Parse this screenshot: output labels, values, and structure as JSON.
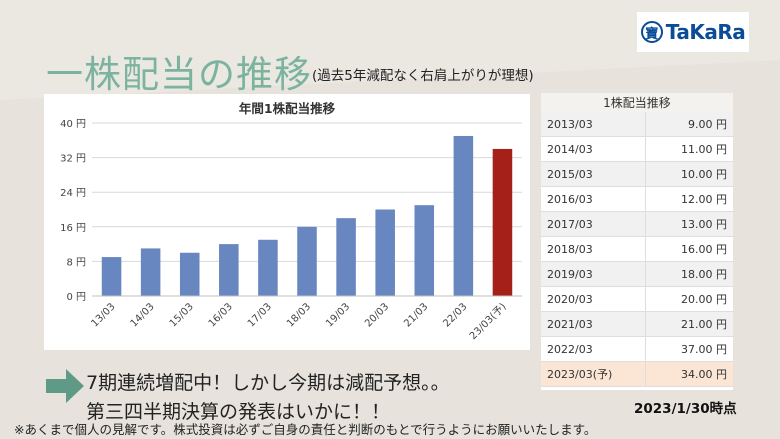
{
  "logo": {
    "mark": "寶",
    "text": "TaKaRa"
  },
  "title": {
    "main": "一株配当の推移",
    "sub": "(過去5年減配なく右肩上がりが理想)"
  },
  "chart_data": {
    "type": "bar",
    "title": "年間1株配当推移",
    "categories": [
      "13/03",
      "14/03",
      "15/03",
      "16/03",
      "17/03",
      "18/03",
      "19/03",
      "20/03",
      "21/03",
      "22/03",
      "23/03(予)"
    ],
    "values": [
      9,
      11,
      10,
      12,
      13,
      16,
      18,
      20,
      21,
      37,
      34
    ],
    "forecast_index": 10,
    "ylim": [
      0,
      40
    ],
    "yticks": [
      0,
      8,
      16,
      24,
      32,
      40
    ],
    "ytick_labels": [
      "0 円",
      "8 円",
      "16 円",
      "24 円",
      "32 円",
      "40 円"
    ],
    "grid": true,
    "colors": {
      "actual": "#6887c0",
      "forecast": "#a42018"
    }
  },
  "table": {
    "title": "1株配当推移",
    "rows": [
      {
        "year": "2013/03",
        "value": "9.00 円"
      },
      {
        "year": "2014/03",
        "value": "11.00 円"
      },
      {
        "year": "2015/03",
        "value": "10.00 円"
      },
      {
        "year": "2016/03",
        "value": "12.00 円"
      },
      {
        "year": "2017/03",
        "value": "13.00 円"
      },
      {
        "year": "2018/03",
        "value": "16.00 円"
      },
      {
        "year": "2019/03",
        "value": "18.00 円"
      },
      {
        "year": "2020/03",
        "value": "20.00 円"
      },
      {
        "year": "2021/03",
        "value": "21.00 円"
      },
      {
        "year": "2022/03",
        "value": "37.00 円"
      },
      {
        "year": "2023/03(予)",
        "value": "34.00 円"
      }
    ]
  },
  "message": {
    "line1": "7期連続増配中！しかし今期は減配予想。。",
    "line2": "第三四半期決算の発表はいかに！！"
  },
  "date_label": "2023/1/30時点",
  "disclaimer": "※あくまで個人の見解です。株式投資は必ずご自身の責任と判断のもとで行うようにお願いいたします。",
  "colors": {
    "title": "#7bb3a0",
    "arrow": "#5e9a85",
    "forecast_row": "#fbe6d6"
  }
}
